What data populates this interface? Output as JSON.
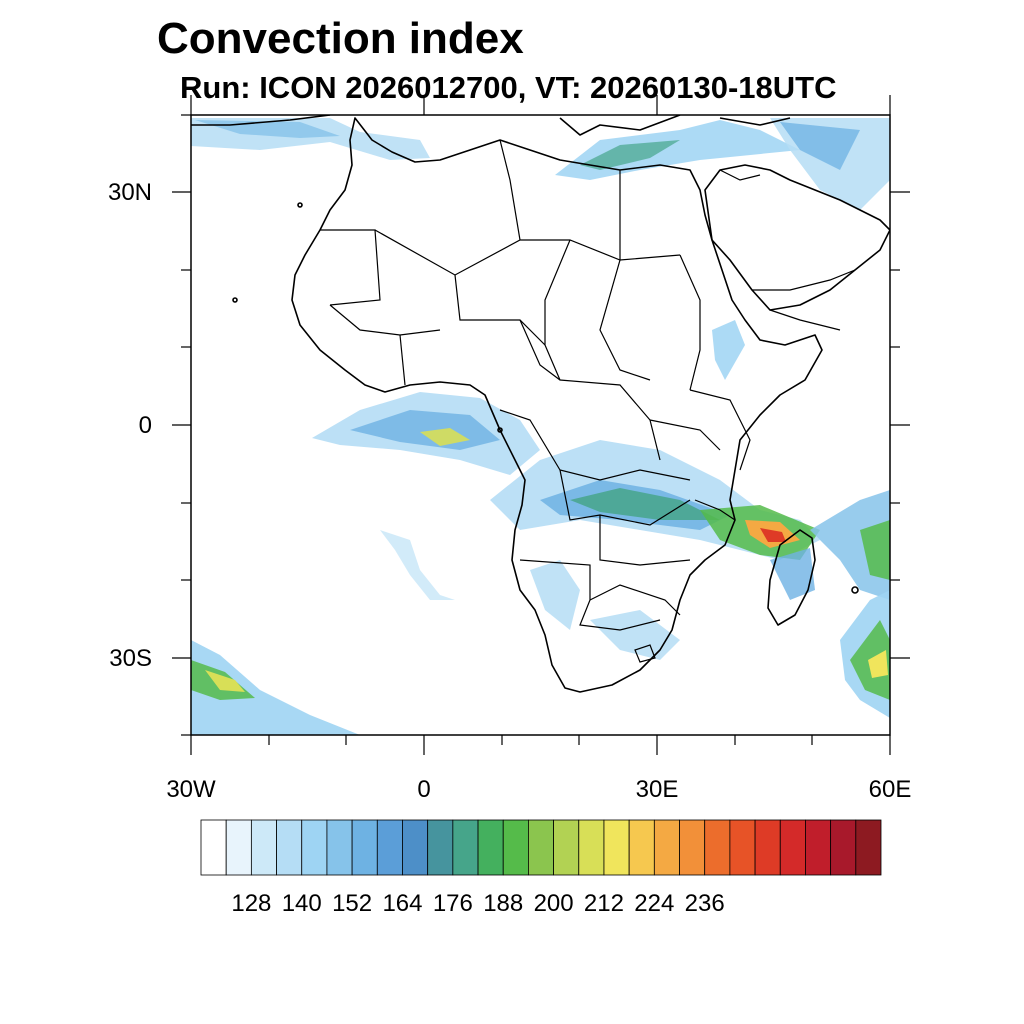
{
  "title": "Convection index",
  "subtitle": "Run: ICON 2026012700,  VT: 20260130-18UTC",
  "map": {
    "region": "Africa and surrounding ocean",
    "lon_range": [
      -30,
      60
    ],
    "lat_range": [
      -40,
      40
    ],
    "y_tick_labels": [
      "30N",
      "0",
      "30S"
    ],
    "x_tick_labels": [
      "30W",
      "0",
      "30E",
      "60E"
    ]
  },
  "colorbar": {
    "tick_labels": [
      "128",
      "140",
      "152",
      "164",
      "176",
      "188",
      "200",
      "212",
      "224",
      "236"
    ],
    "colors": [
      "#ffffff",
      "#e8f4fc",
      "#cde9f8",
      "#b5ddf5",
      "#9ed4f3",
      "#86c3ea",
      "#6eb2e3",
      "#5b9ed8",
      "#4d8fc8",
      "#46949e",
      "#46a58a",
      "#44b05e",
      "#55bb4a",
      "#8bc54e",
      "#b2d253",
      "#d8df57",
      "#f0e55c",
      "#f6c84f",
      "#f4a943",
      "#f29039",
      "#ec6d2c",
      "#e75327",
      "#de3b26",
      "#d42a29",
      "#c01e2b",
      "#a8192b",
      "#8d1a21"
    ]
  }
}
